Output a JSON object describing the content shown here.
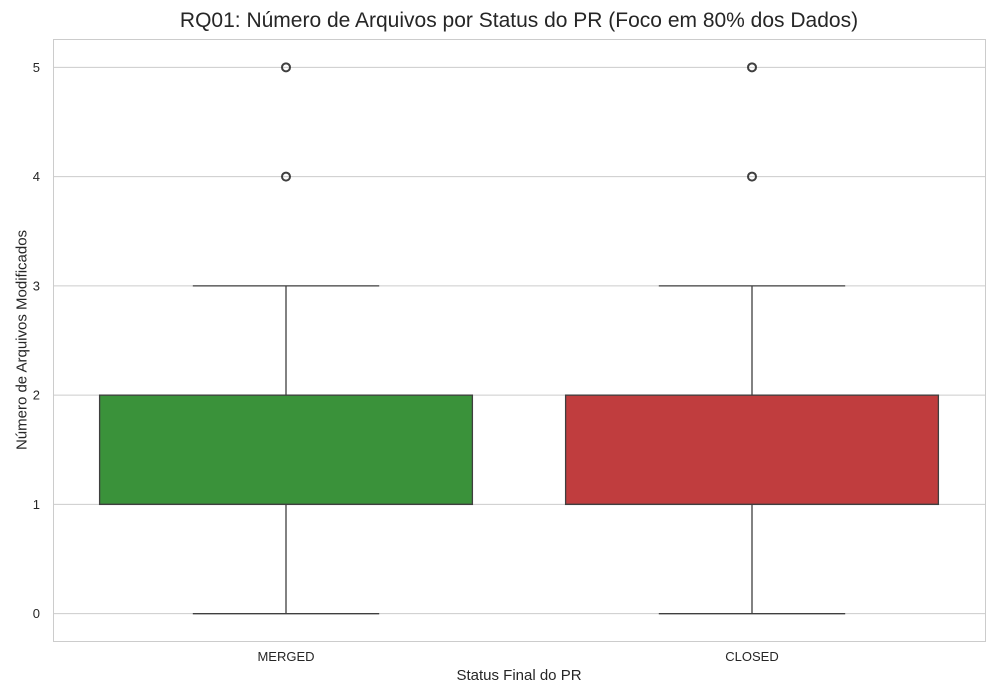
{
  "chart_data": {
    "type": "box",
    "title": "RQ01: Número de Arquivos por Status do PR (Foco em 80% dos Dados)",
    "xlabel": "Status Final do PR",
    "ylabel": "Número de Arquivos Modificados",
    "categories": [
      "MERGED",
      "CLOSED"
    ],
    "ylim": [
      -0.25,
      5.25
    ],
    "yticks": [
      "0",
      "1",
      "2",
      "3",
      "4",
      "5"
    ],
    "grid": true,
    "boxes": [
      {
        "category": "MERGED",
        "whisker_low": 0,
        "q1": 1,
        "median": 1,
        "q3": 2,
        "whisker_high": 3,
        "outliers": [
          4,
          5
        ],
        "color": "#3a923a"
      },
      {
        "category": "CLOSED",
        "whisker_low": 0,
        "q1": 1,
        "median": 1,
        "q3": 2,
        "whisker_high": 3,
        "outliers": [
          4,
          5
        ],
        "color": "#c03d3e"
      }
    ]
  }
}
